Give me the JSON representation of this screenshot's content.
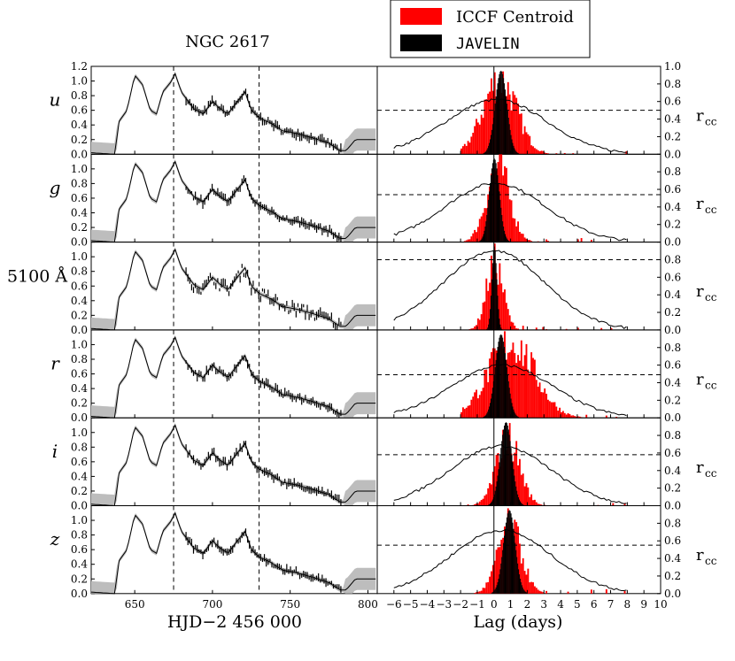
{
  "chart_data": {
    "type": "multi-panel light curves and lag histograms",
    "title": "NGC 2617",
    "left_column": {
      "xlabel": "HJD−2 456 000",
      "xlim": [
        622,
        806
      ],
      "ylim": [
        0,
        1.2
      ],
      "xticks": [
        "650",
        "700",
        "750",
        "800"
      ],
      "yticks": [
        "0.0",
        "0.2",
        "0.4",
        "0.6",
        "0.8",
        "1.0",
        "1.2"
      ],
      "vlines": [
        675,
        730
      ],
      "bands": [
        "u",
        "g",
        "5100 Å",
        "r",
        "i",
        "z"
      ]
    },
    "right_column": {
      "xlabel": "Lag (days)",
      "xlim": [
        -7,
        10
      ],
      "xticks": [
        "−6",
        "−5",
        "−4",
        "−3",
        "−2",
        "−1",
        "0",
        "1",
        "2",
        "3",
        "4",
        "5",
        "6",
        "7",
        "8",
        "9",
        "10"
      ],
      "ylabel_right": "r",
      "ylabel_sub": "cc",
      "rticks": [
        "0.0",
        "0.2",
        "0.4",
        "0.6",
        "0.8",
        "1.0"
      ]
    },
    "legend": [
      "ICCF Centroid",
      "JAVELIN"
    ],
    "panels": [
      {
        "band": "u",
        "lag_centroid": 0.3,
        "iccf_width": 1.0,
        "javelin": 0.4,
        "javelin_width": 0.35,
        "rmax": 0.62,
        "rdash": 0.5,
        "hist_ymax": 1.0
      },
      {
        "band": "g",
        "lag_centroid": 0.2,
        "iccf_width": 0.7,
        "javelin": 0.0,
        "javelin_width": 0.3,
        "rmax": 0.67,
        "rdash": 0.54,
        "hist_ymax": 1.0
      },
      {
        "band": "5100 Å",
        "lag_centroid": 0.0,
        "iccf_width": 0.5,
        "javelin": 0.0,
        "javelin_width": 0.15,
        "rmax": 0.9,
        "rdash": 0.8,
        "hist_ymax": 0.9
      },
      {
        "band": "r",
        "lag_centroid": 1.0,
        "iccf_width": 1.4,
        "javelin": 0.4,
        "javelin_width": 0.35,
        "rmax": 0.6,
        "rdash": 0.49,
        "hist_ymax": 1.0
      },
      {
        "band": "i",
        "lag_centroid": 0.8,
        "iccf_width": 0.7,
        "javelin": 0.7,
        "javelin_width": 0.35,
        "rmax": 0.68,
        "rdash": 0.58,
        "hist_ymax": 0.9
      },
      {
        "band": "z",
        "lag_centroid": 0.9,
        "iccf_width": 0.7,
        "javelin": 0.9,
        "javelin_width": 0.35,
        "rmax": 0.72,
        "rdash": 0.55,
        "hist_ymax": 0.9
      }
    ],
    "colors": {
      "iccf": "#ff0000",
      "javelin": "#000000",
      "band": "#bdbdbd",
      "line": "#000000"
    }
  }
}
